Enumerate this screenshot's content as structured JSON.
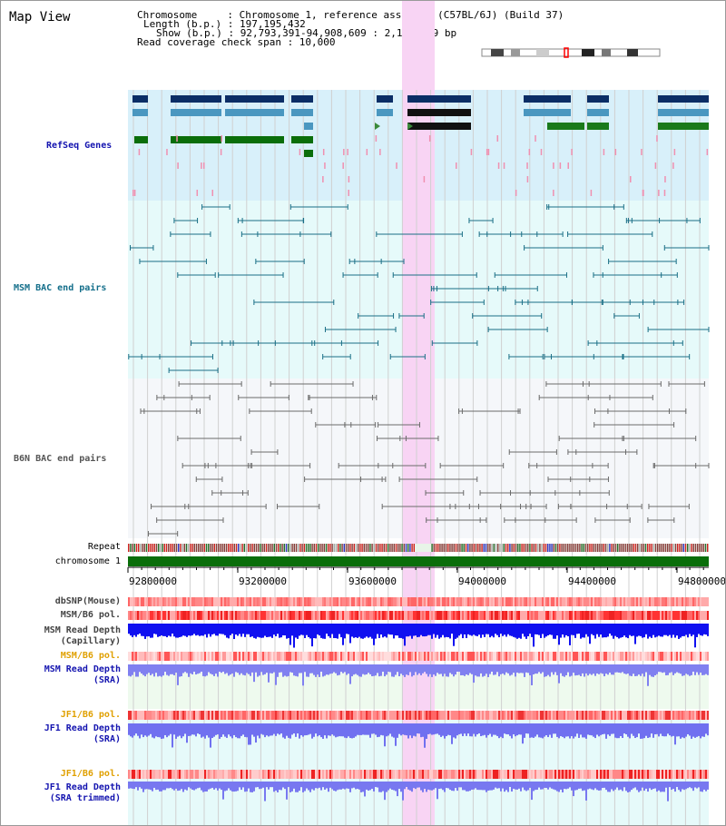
{
  "title": "Map View",
  "info": {
    "line1": "Chromosome     : Chromosome 1, reference assembly (C57BL/6J) (Build 37)",
    "line2": "Length (b.p.) : 197,195,432",
    "line3": "Show (b.p.) : 92,793,391-94,908,609 : 2,115,219 bp",
    "line4": "Read coverage check span : 10,000"
  },
  "tracks": {
    "refseq": "RefSeq Genes",
    "msm_bac": "MSM BAC end pairs",
    "b6n_bac": "B6N BAC end pairs",
    "repeat": "Repeat",
    "chromosome": "chromosome 1",
    "dbsnp": "dbSNP(Mouse)",
    "msm_pol1": "MSM/B6 pol.",
    "msm_depth_cap_1": "MSM Read Depth",
    "msm_depth_cap_2": "(Capillary)",
    "msm_pol2": "MSM/B6 pol.",
    "msm_depth_sra_1": "MSM Read Depth",
    "msm_depth_sra_2": "(SRA)",
    "jf1_pol1": "JF1/B6 pol.",
    "jf1_depth_sra_1": "JF1 Read Depth",
    "jf1_depth_sra_2": "(SRA)",
    "jf1_pol2": "JF1/B6 pol.",
    "jf1_depth_trim_1": "JF1 Read Depth",
    "jf1_depth_trim_2": "(SRA trimmed)"
  },
  "axis": {
    "ticks": [
      "92800000",
      "93200000",
      "93600000",
      "94000000",
      "94400000",
      "94800000"
    ]
  },
  "colors": {
    "refseq_bg": "#d8f0fa",
    "msm_bg": "#e6fafa",
    "b6n_bg": "#f5f7fa",
    "highlight": "#f8d4f4",
    "label_blue": "#1515b0",
    "label_teal": "#136e8a",
    "label_gray": "#444444",
    "label_orange": "#e0a000"
  }
}
